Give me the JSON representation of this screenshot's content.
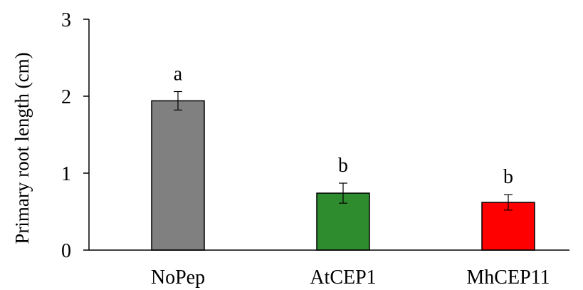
{
  "chart_data": {
    "type": "bar",
    "title": "",
    "xlabel": "",
    "ylabel": "Primary root length (cm)",
    "ylim": [
      0,
      3
    ],
    "yticks": [
      "0",
      "1",
      "2",
      "3"
    ],
    "grid": false,
    "legend": "none",
    "categories": [
      "NoPep",
      "AtCEP1",
      "MhCEP11"
    ],
    "values": [
      1.94,
      0.74,
      0.62
    ],
    "errors": [
      0.12,
      0.13,
      0.1
    ],
    "significance": [
      "a",
      "b",
      "b"
    ],
    "colors": [
      "#808080",
      "#2e8b2e",
      "#ff0000"
    ]
  }
}
